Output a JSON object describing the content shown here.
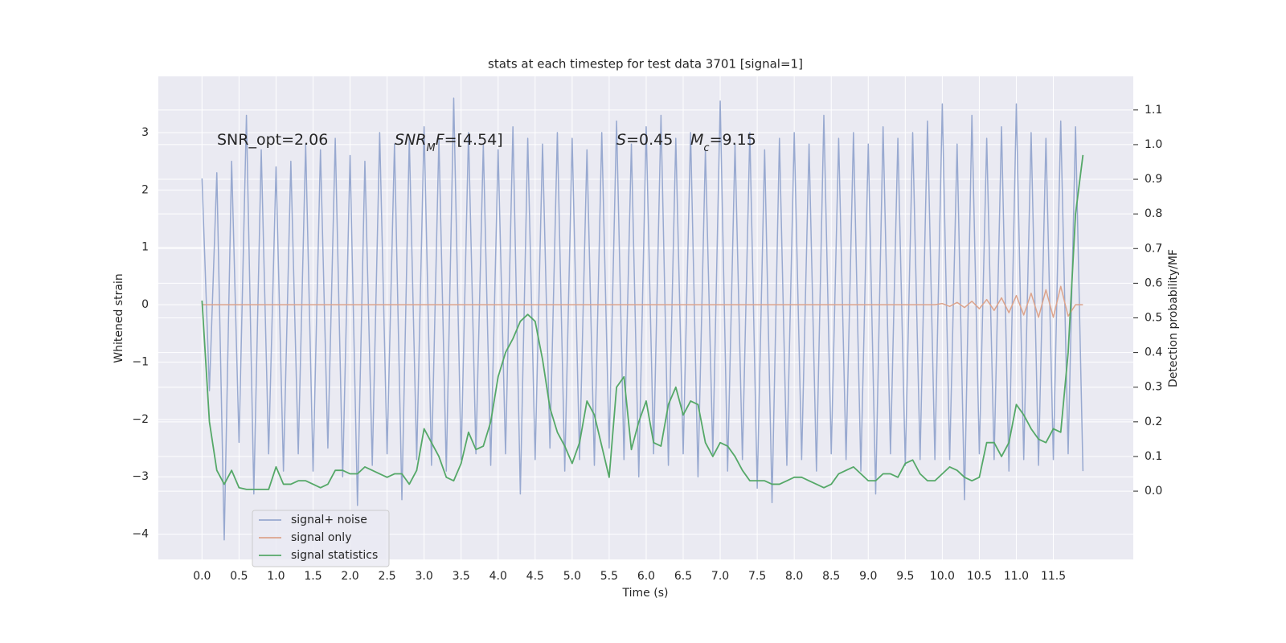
{
  "chart_data": {
    "type": "line",
    "title": "stats at each timestep for test data 3701 [signal=1]",
    "xlabel": "Time (s)",
    "ylabel": "Whitened strain",
    "y2label": "Detection probability/MF",
    "annotations": [
      {
        "segments": [
          {
            "text": "SNR_opt=2.06"
          }
        ]
      },
      {
        "segments": [
          {
            "text": "SNR",
            "italic": true
          },
          {
            "text": "M",
            "italic": true,
            "sub": true
          },
          {
            "text": "F",
            "italic": true
          },
          {
            "text": "=[4.54]"
          }
        ]
      },
      {
        "segments": [
          {
            "text": "S",
            "italic": true
          },
          {
            "text": "=0.45"
          }
        ]
      },
      {
        "segments": [
          {
            "text": "M",
            "italic": true
          },
          {
            "text": "c",
            "italic": true,
            "sub": true
          },
          {
            "text": "=9.15"
          }
        ]
      }
    ],
    "x": [
      0,
      0.1,
      0.2,
      0.3,
      0.4,
      0.5,
      0.6,
      0.7,
      0.8,
      0.9,
      1,
      1.1,
      1.2,
      1.3,
      1.4,
      1.5,
      1.6,
      1.7,
      1.8,
      1.9,
      2,
      2.1,
      2.2,
      2.3,
      2.4,
      2.5,
      2.6,
      2.7,
      2.8,
      2.9,
      3,
      3.1,
      3.2,
      3.3,
      3.4,
      3.5,
      3.6,
      3.7,
      3.8,
      3.9,
      4,
      4.1,
      4.2,
      4.3,
      4.4,
      4.5,
      4.6,
      4.7,
      4.8,
      4.9,
      5,
      5.1,
      5.2,
      5.3,
      5.4,
      5.5,
      5.6,
      5.7,
      5.8,
      5.9,
      6,
      6.1,
      6.2,
      6.3,
      6.4,
      6.5,
      6.6,
      6.7,
      6.8,
      6.9,
      7,
      7.1,
      7.2,
      7.3,
      7.4,
      7.5,
      7.6,
      7.7,
      7.8,
      7.9,
      8,
      8.1,
      8.2,
      8.3,
      8.4,
      8.5,
      8.6,
      8.7,
      8.8,
      8.9,
      9,
      9.1,
      9.2,
      9.3,
      9.4,
      9.5,
      9.6,
      9.7,
      9.8,
      9.9,
      10,
      10.1,
      10.2,
      10.3,
      10.4,
      10.5,
      10.6,
      10.7,
      10.8,
      10.9,
      11,
      11.1,
      11.2,
      11.3,
      11.4,
      11.5,
      11.6,
      11.7,
      11.8,
      11.9
    ],
    "series": [
      {
        "name": "signal+ noise",
        "color": "#98a9d0",
        "values": [
          2.2,
          -1.5,
          2.3,
          -4.1,
          2.5,
          -2.4,
          3.3,
          -3.3,
          2.7,
          -2.6,
          2.4,
          -2.9,
          2.5,
          -2.6,
          2.8,
          -2.9,
          2.7,
          -2.5,
          2.9,
          -3.0,
          2.6,
          -3.5,
          2.5,
          -2.8,
          3.0,
          -2.6,
          2.8,
          -3.4,
          2.9,
          -2.7,
          3.1,
          -2.8,
          2.9,
          -2.9,
          3.6,
          -2.7,
          3.0,
          -2.6,
          2.8,
          -2.8,
          2.7,
          -2.6,
          3.1,
          -3.3,
          2.9,
          -2.7,
          2.8,
          -2.5,
          3.0,
          -2.9,
          2.9,
          -2.7,
          2.7,
          -2.8,
          3.0,
          -2.5,
          3.2,
          -2.7,
          2.8,
          -3.0,
          3.1,
          -2.6,
          3.3,
          -2.8,
          2.9,
          -2.6,
          3.0,
          -3.0,
          2.7,
          -2.6,
          3.55,
          -2.9,
          2.8,
          -2.7,
          3.0,
          -3.2,
          2.7,
          -3.45,
          2.9,
          -2.8,
          3.0,
          -2.7,
          2.8,
          -2.9,
          3.3,
          -2.6,
          2.9,
          -2.7,
          3.0,
          -2.9,
          2.8,
          -3.3,
          3.1,
          -2.6,
          2.9,
          -2.8,
          3.0,
          -2.7,
          3.2,
          -2.7,
          3.5,
          -2.7,
          2.8,
          -3.4,
          3.3,
          -2.6,
          2.9,
          -2.7,
          3.1,
          -2.9,
          3.5,
          -2.7,
          3.0,
          -2.8,
          2.9,
          -2.7,
          3.2,
          -2.6,
          3.1,
          -2.9
        ]
      },
      {
        "name": "signal only",
        "color": "#dda48c",
        "values": [
          0,
          0,
          0,
          0,
          0,
          0,
          0,
          0,
          0,
          0,
          0,
          0,
          0,
          0,
          0,
          0,
          0,
          0,
          0,
          0,
          0,
          0,
          0,
          0,
          0,
          0,
          0,
          0,
          0,
          0,
          0,
          0,
          0,
          0,
          0,
          0,
          0,
          0,
          0,
          0,
          0,
          0,
          0,
          0,
          0,
          0,
          0,
          0,
          0,
          0,
          0,
          0,
          0,
          0,
          0,
          0,
          0,
          0,
          0,
          0,
          0,
          0,
          0,
          0,
          0,
          0,
          0,
          0,
          0,
          0,
          0,
          0,
          0,
          0,
          0,
          0,
          0,
          0,
          0,
          0,
          0,
          0,
          0,
          0,
          0,
          0,
          0,
          0,
          0,
          0,
          0,
          0,
          0,
          0,
          0,
          0,
          0,
          0,
          0,
          0,
          0.02,
          -0.03,
          0.04,
          -0.05,
          0.06,
          -0.07,
          0.09,
          -0.1,
          0.12,
          -0.14,
          0.16,
          -0.18,
          0.2,
          -0.22,
          0.26,
          -0.22,
          0.32,
          -0.2,
          0,
          0
        ]
      },
      {
        "name": "signal statistics",
        "color": "#55a868",
        "axis": "y2",
        "values": [
          0.55,
          0.2,
          0.06,
          0.02,
          0.06,
          0.01,
          0.005,
          0.005,
          0.005,
          0.005,
          0.07,
          0.02,
          0.02,
          0.03,
          0.03,
          0.02,
          0.01,
          0.02,
          0.06,
          0.06,
          0.05,
          0.05,
          0.07,
          0.06,
          0.05,
          0.04,
          0.05,
          0.05,
          0.02,
          0.06,
          0.18,
          0.14,
          0.1,
          0.04,
          0.03,
          0.08,
          0.17,
          0.12,
          0.13,
          0.2,
          0.33,
          0.4,
          0.44,
          0.49,
          0.51,
          0.49,
          0.38,
          0.24,
          0.17,
          0.13,
          0.08,
          0.14,
          0.26,
          0.22,
          0.13,
          0.04,
          0.3,
          0.33,
          0.12,
          0.2,
          0.26,
          0.14,
          0.13,
          0.25,
          0.3,
          0.22,
          0.26,
          0.25,
          0.14,
          0.1,
          0.14,
          0.13,
          0.1,
          0.06,
          0.03,
          0.03,
          0.03,
          0.02,
          0.02,
          0.03,
          0.04,
          0.04,
          0.03,
          0.02,
          0.01,
          0.02,
          0.05,
          0.06,
          0.07,
          0.05,
          0.03,
          0.03,
          0.05,
          0.05,
          0.04,
          0.08,
          0.09,
          0.05,
          0.03,
          0.03,
          0.05,
          0.07,
          0.06,
          0.04,
          0.03,
          0.04,
          0.14,
          0.14,
          0.1,
          0.14,
          0.25,
          0.22,
          0.18,
          0.15,
          0.14,
          0.18,
          0.17,
          0.4,
          0.8,
          0.97
        ]
      }
    ],
    "xlim": [
      -0.59,
      12.58
    ],
    "xticks": [
      {
        "value": 0,
        "label": "0.0"
      },
      0.5,
      {
        "value": 1,
        "label": "1.0"
      },
      1.5,
      {
        "value": 2,
        "label": "2.0"
      },
      2.5,
      {
        "value": 3,
        "label": "3.0"
      },
      3.5,
      {
        "value": 4,
        "label": "4.0"
      },
      4.5,
      {
        "value": 5,
        "label": "5.0"
      },
      5.5,
      {
        "value": 6,
        "label": "6.0"
      },
      6.5,
      {
        "value": 7,
        "label": "7.0"
      },
      7.5,
      {
        "value": 8,
        "label": "8.0"
      },
      8.5,
      {
        "value": 9,
        "label": "9.0"
      },
      9.5,
      {
        "value": 10,
        "label": "10.0"
      },
      10.5,
      {
        "value": 11,
        "label": "11.0"
      },
      11.5
    ],
    "ylim": [
      -4.44,
      3.98
    ],
    "yticks": [
      {
        "value": -4,
        "label": "−4"
      },
      {
        "value": -3,
        "label": "−3"
      },
      {
        "value": -2,
        "label": "−2"
      },
      {
        "value": -1,
        "label": "−1"
      },
      0,
      1,
      2,
      3
    ],
    "y2lim": [
      -0.197,
      1.197
    ],
    "y2ticks": [
      {
        "value": 0,
        "label": "0.0"
      },
      0.1,
      0.2,
      0.3,
      0.4,
      0.5,
      0.6,
      0.7,
      0.8,
      0.9,
      {
        "value": 1,
        "label": "1.0"
      },
      1.1
    ],
    "grid": true,
    "legend": "lower left"
  }
}
